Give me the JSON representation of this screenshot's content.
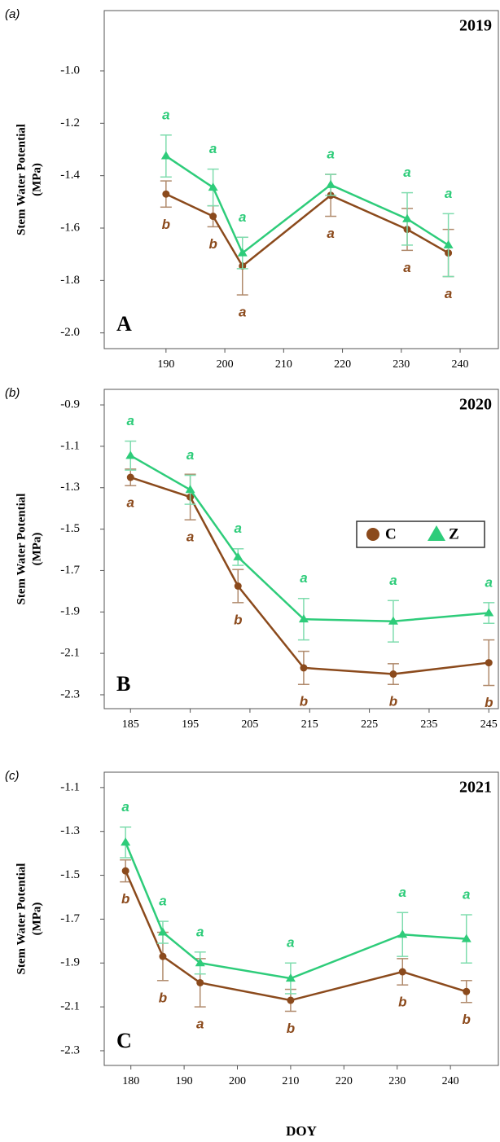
{
  "chart_data": [
    {
      "type": "line",
      "panel": "(a)",
      "tag": "A",
      "year": "2019",
      "ylabel": [
        "Stem Water Potential",
        "(MPa)"
      ],
      "x": [
        190,
        198,
        203,
        218,
        231,
        238
      ],
      "xlim": [
        179.5,
        246.5
      ],
      "xticks": [
        190,
        200,
        210,
        220,
        230,
        240
      ],
      "ylim": [
        -2.06,
        -0.77
      ],
      "yticks": [
        {
          "value": -2,
          "label": "-2.0"
        },
        -1.8,
        -1.6,
        -1.4,
        -1.2,
        {
          "value": -1,
          "label": "-1.0"
        }
      ],
      "legend": false,
      "series": [
        {
          "name": "C",
          "color": "#8b4a1c",
          "marker": "circle",
          "values": [
            -1.47,
            -1.555,
            -1.745,
            -1.475,
            -1.605,
            -1.695
          ],
          "errors": [
            0.05,
            0.04,
            0.11,
            0.08,
            0.08,
            0.09
          ],
          "letters": [
            "b",
            "b",
            "a",
            "a",
            "a",
            "a"
          ]
        },
        {
          "name": "Z",
          "color": "#2ecc7a",
          "marker": "triangle",
          "values": [
            -1.325,
            -1.445,
            -1.695,
            -1.435,
            -1.565,
            -1.665
          ],
          "errors": [
            0.08,
            0.07,
            0.06,
            0.04,
            0.1,
            0.12
          ],
          "letters": [
            "a",
            "a",
            "a",
            "a",
            "a",
            "a"
          ]
        }
      ]
    },
    {
      "type": "line",
      "panel": "(b)",
      "tag": "B",
      "year": "2020",
      "ylabel": [
        "Stem Water Potential",
        "(MPa)"
      ],
      "x": [
        185,
        195,
        203,
        214,
        229,
        245
      ],
      "xlim": [
        180.6,
        246.6
      ],
      "xticks": [
        185,
        195,
        205,
        215,
        225,
        235,
        245
      ],
      "ylim": [
        -2.367,
        -0.825
      ],
      "yticks": [
        -2.3,
        -2.1,
        -1.9,
        -1.7,
        -1.5,
        -1.3,
        -1.1,
        -0.9
      ],
      "legend": "right",
      "series": [
        {
          "name": "C",
          "color": "#8b4a1c",
          "marker": "circle",
          "values": [
            -1.25,
            -1.345,
            -1.775,
            -2.17,
            -2.2,
            -2.145
          ],
          "errors": [
            0.04,
            0.11,
            0.08,
            0.08,
            0.05,
            0.11
          ],
          "letters": [
            "a",
            "a",
            "b",
            "b",
            "b",
            "b"
          ]
        },
        {
          "name": "Z",
          "color": "#2ecc7a",
          "marker": "triangle",
          "values": [
            -1.145,
            -1.31,
            -1.635,
            -1.935,
            -1.945,
            -1.905
          ],
          "errors": [
            0.07,
            0.07,
            0.04,
            0.1,
            0.1,
            0.05
          ],
          "letters": [
            "a",
            "a",
            "a",
            "a",
            "a",
            "a"
          ]
        }
      ]
    },
    {
      "type": "line",
      "panel": "(c)",
      "tag": "C",
      "year": "2021",
      "ylabel": [
        "Stem Water Potential",
        "(MPa)"
      ],
      "xlabel": "DOY",
      "x": [
        179,
        186,
        193,
        210,
        231,
        243
      ],
      "xlim": [
        175,
        249
      ],
      "xticks": [
        180,
        190,
        200,
        210,
        220,
        230,
        240
      ],
      "ylim": [
        -2.367,
        -1.03
      ],
      "yticks": [
        -2.3,
        -2.1,
        -1.9,
        -1.7,
        -1.5,
        -1.3,
        -1.1
      ],
      "legend": false,
      "series": [
        {
          "name": "C",
          "color": "#8b4a1c",
          "marker": "circle",
          "values": [
            -1.48,
            -1.87,
            -1.99,
            -2.07,
            -1.94,
            -2.03
          ],
          "errors": [
            0.05,
            0.11,
            0.11,
            0.05,
            0.06,
            0.05
          ],
          "letters": [
            "b",
            "b",
            "a",
            "b",
            "b",
            "b"
          ]
        },
        {
          "name": "Z",
          "color": "#2ecc7a",
          "marker": "triangle",
          "values": [
            -1.35,
            -1.76,
            -1.9,
            -1.97,
            -1.77,
            -1.79
          ],
          "errors": [
            0.07,
            0.05,
            0.05,
            0.07,
            0.1,
            0.11
          ],
          "letters": [
            "a",
            "a",
            "a",
            "a",
            "a",
            "a"
          ]
        }
      ]
    }
  ]
}
